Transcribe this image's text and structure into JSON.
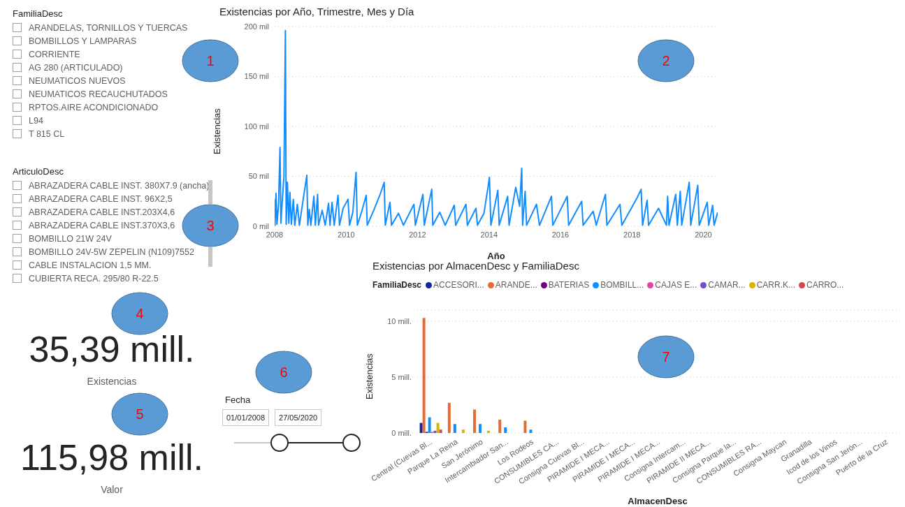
{
  "chart_data": [
    {
      "type": "other",
      "title": "FamiliaDesc",
      "annotations": [
        "ARANDELAS, TORNILLOS Y TUERCAS",
        "BOMBILLOS Y LAMPARAS",
        "CORRIENTE",
        "AG 280 (ARTICULADO)",
        "NEUMATICOS NUEVOS",
        "NEUMATICOS RECAUCHUTADOS",
        "RPTOS.AIRE ACONDICIONADO",
        "L94",
        "T 815 CL"
      ]
    },
    {
      "type": "line",
      "title": "Existencias por Año, Trimestre, Mes y Día",
      "xlabel": "Año",
      "ylabel": "Existencias",
      "color": "#118dff",
      "grid": "y",
      "xlim": [
        "2008-01-01",
        "2020-05-27"
      ],
      "xticks": [
        "2008",
        "2010",
        "2012",
        "2014",
        "2016",
        "2018",
        "2020"
      ],
      "ylim": [
        0,
        200
      ],
      "yticks": [
        {
          "value": 0,
          "label": "0 mil"
        },
        {
          "value": 50,
          "label": "50 mil"
        },
        {
          "value": 100,
          "label": "100 mil"
        },
        {
          "value": 150,
          "label": "150 mil"
        },
        {
          "value": 200,
          "label": "200 mil"
        }
      ],
      "x": [
        "2008-01-01",
        "2008-01-05",
        "2008-01-15",
        "2008-01-25",
        "2008-02-10",
        "2008-02-25",
        "2008-03-05",
        "2008-03-20",
        "2008-04-05",
        "2008-04-20",
        "2008-04-28",
        "2008-05-10",
        "2008-05-25",
        "2008-06-05",
        "2008-06-20",
        "2008-07-10",
        "2008-07-25",
        "2008-08-20",
        "2008-09-10",
        "2008-10-10",
        "2008-11-25",
        "2008-12-05",
        "2008-12-20",
        "2009-01-05",
        "2009-02-05",
        "2009-02-20",
        "2009-03-15",
        "2009-03-25",
        "2009-05-01",
        "2009-06-01",
        "2009-07-05",
        "2009-07-20",
        "2009-08-10",
        "2009-09-01",
        "2009-10-10",
        "2009-10-25",
        "2009-12-01",
        "2010-01-20",
        "2010-02-05",
        "2010-03-10",
        "2010-04-12",
        "2010-04-25",
        "2010-06-10",
        "2010-07-25",
        "2010-08-05",
        "2010-10-10",
        "2010-12-15",
        "2011-01-25",
        "2011-02-05",
        "2011-03-25",
        "2011-04-10",
        "2011-06-20",
        "2011-08-10",
        "2011-11-25",
        "2011-12-10",
        "2012-02-25",
        "2012-03-10",
        "2012-05-25",
        "2012-06-05",
        "2012-08-15",
        "2012-10-10",
        "2013-01-10",
        "2013-01-25",
        "2013-05-10",
        "2013-05-25",
        "2013-08-20",
        "2013-09-05",
        "2013-11-10",
        "2013-12-20",
        "2014-01-05",
        "2014-01-20",
        "2014-04-01",
        "2014-04-15",
        "2014-07-10",
        "2014-07-25",
        "2014-10-01",
        "2014-11-10",
        "2014-12-01",
        "2014-12-10",
        "2015-01-05",
        "2015-01-20",
        "2015-05-01",
        "2015-06-01",
        "2015-10-01",
        "2015-10-15",
        "2016-03-10",
        "2016-03-25",
        "2016-08-05",
        "2016-08-20",
        "2016-12-01",
        "2017-01-01",
        "2017-04-05",
        "2017-04-20",
        "2017-09-01",
        "2017-09-20",
        "2018-02-20",
        "2018-04-05",
        "2018-04-20",
        "2018-06-05",
        "2018-06-20",
        "2018-09-30",
        "2018-12-20",
        "2019-01-01",
        "2019-01-15",
        "2019-03-25",
        "2019-04-10",
        "2019-05-10",
        "2019-05-25",
        "2019-08-10",
        "2019-08-25",
        "2019-11-05",
        "2019-11-20",
        "2020-02-10",
        "2020-02-25",
        "2020-04-05",
        "2020-04-20",
        "2020-05-27"
      ],
      "values": [
        27,
        1,
        33,
        2,
        22,
        79,
        3,
        27,
        50,
        196,
        2,
        44,
        3,
        34,
        2,
        27,
        1,
        22,
        1,
        21,
        51,
        1,
        17,
        1,
        30,
        1,
        32,
        1,
        16,
        1,
        23,
        1,
        24,
        1,
        31,
        1,
        18,
        27,
        1,
        14,
        54,
        1,
        15,
        31,
        1,
        16,
        32,
        44,
        1,
        24,
        1,
        13,
        1,
        22,
        1,
        32,
        1,
        37,
        1,
        14,
        1,
        21,
        1,
        22,
        1,
        18,
        1,
        13,
        38,
        49,
        1,
        36,
        1,
        30,
        1,
        39,
        20,
        58,
        1,
        35,
        1,
        22,
        1,
        30,
        1,
        30,
        1,
        25,
        1,
        15,
        1,
        32,
        1,
        22,
        1,
        28,
        37,
        1,
        26,
        1,
        18,
        1,
        30,
        1,
        32,
        1,
        35,
        1,
        44,
        1,
        41,
        1,
        24,
        1,
        21,
        1,
        14
      ]
    },
    {
      "type": "other",
      "title": "ArticuloDesc",
      "annotations": [
        "ABRAZADERA CABLE INST. 380X7.9 (ancha)",
        "ABRAZADERA CABLE INST. 96X2,5",
        "ABRAZADERA CABLE INST.203X4,6",
        "ABRAZADERA CABLE INST.370X3,6",
        "BOMBILLO 21W 24V",
        "BOMBILLO 24V-5W ZEPELIN (N109)7552",
        "CABLE INSTALACION 1,5 MM.",
        "CUBIERTA RECA. 295/80 R-22.5"
      ]
    },
    {
      "type": "other",
      "annotations": [
        "35,39 mill.",
        "Existencias"
      ]
    },
    {
      "type": "other",
      "annotations": [
        "115,98 mill.",
        "Valor"
      ]
    },
    {
      "type": "other",
      "title": "Fecha",
      "annotations": [
        "01/01/2008",
        "27/05/2020"
      ]
    },
    {
      "type": "bar",
      "title": "Existencias por AlmacenDesc y FamiliaDesc",
      "xlabel": "AlmacenDesc",
      "ylabel": "Existencias",
      "legend_title": "FamiliaDesc",
      "legend": "top",
      "grid": "y",
      "ylim": [
        0,
        11
      ],
      "yticks": [
        {
          "value": 0,
          "label": "0 mill."
        },
        {
          "value": 5,
          "label": "5 mill."
        },
        {
          "value": 10,
          "label": "10 mill."
        }
      ],
      "categories": [
        "Central (Cuevas Bl...",
        "Parque La Reina",
        "San Jerónimo",
        "Intercambiador San...",
        "Los Rodeos",
        "CONSUMIBLES CA...",
        "Consigna Cuevas Bl...",
        "PIRAMIDE I MECA...",
        "PIRAMIDE I MECA...",
        "PIRAMIDE I MECA...",
        "Consigna Intercam...",
        "PIRAMIDE II MECA...",
        "Consigna Parque la...",
        "CONSUMIBLES RA...",
        "Consigna Maycan",
        "Granadilla",
        "Icod de los Vinos",
        "Consigna San Jerón...",
        "Puerto de la Cruz"
      ],
      "series": [
        {
          "name": "ACCESORI...",
          "color": "#12239e",
          "values": [
            0.9,
            0,
            0,
            0,
            0,
            0,
            0,
            0,
            0,
            0,
            0,
            0,
            0,
            0,
            0,
            0,
            0,
            0,
            0
          ]
        },
        {
          "name": "ARANDE...",
          "color": "#e66c37",
          "values": [
            10.3,
            2.7,
            2.1,
            1.2,
            1.1,
            0,
            0,
            0,
            0,
            0,
            0,
            0,
            0,
            0,
            0,
            0,
            0,
            0,
            0
          ]
        },
        {
          "name": "BATERIAS",
          "color": "#6b007b",
          "values": [
            0.1,
            0,
            0,
            0,
            0,
            0,
            0,
            0,
            0,
            0,
            0,
            0,
            0,
            0,
            0,
            0,
            0,
            0,
            0
          ]
        },
        {
          "name": "BOMBILL...",
          "color": "#118dff",
          "values": [
            1.4,
            0.8,
            0.8,
            0.5,
            0.3,
            0,
            0,
            0,
            0,
            0,
            0,
            0,
            0,
            0,
            0,
            0,
            0,
            0,
            0
          ]
        },
        {
          "name": "CAJAS E...",
          "color": "#e044a7",
          "values": [
            0.1,
            0,
            0,
            0,
            0,
            0,
            0,
            0,
            0,
            0,
            0,
            0,
            0,
            0,
            0,
            0,
            0,
            0,
            0
          ]
        },
        {
          "name": "CAMAR...",
          "color": "#744ec2",
          "values": [
            0.2,
            0,
            0,
            0,
            0,
            0,
            0,
            0,
            0,
            0,
            0,
            0,
            0,
            0,
            0,
            0,
            0,
            0,
            0
          ]
        },
        {
          "name": "CARR.K...",
          "color": "#d9b300",
          "values": [
            0.9,
            0.3,
            0.2,
            0,
            0,
            0,
            0,
            0,
            0,
            0,
            0,
            0,
            0,
            0,
            0,
            0,
            0,
            0,
            0
          ]
        },
        {
          "name": "CARRO...",
          "color": "#d64550",
          "values": [
            0.3,
            0,
            0,
            0,
            0,
            0,
            0,
            0,
            0,
            0,
            0,
            0,
            0,
            0,
            0,
            0,
            0,
            0,
            0
          ]
        }
      ]
    },
    {
      "type": "other",
      "annotations": [
        "1",
        "2",
        "3",
        "4",
        "5",
        "6",
        "7"
      ]
    }
  ]
}
